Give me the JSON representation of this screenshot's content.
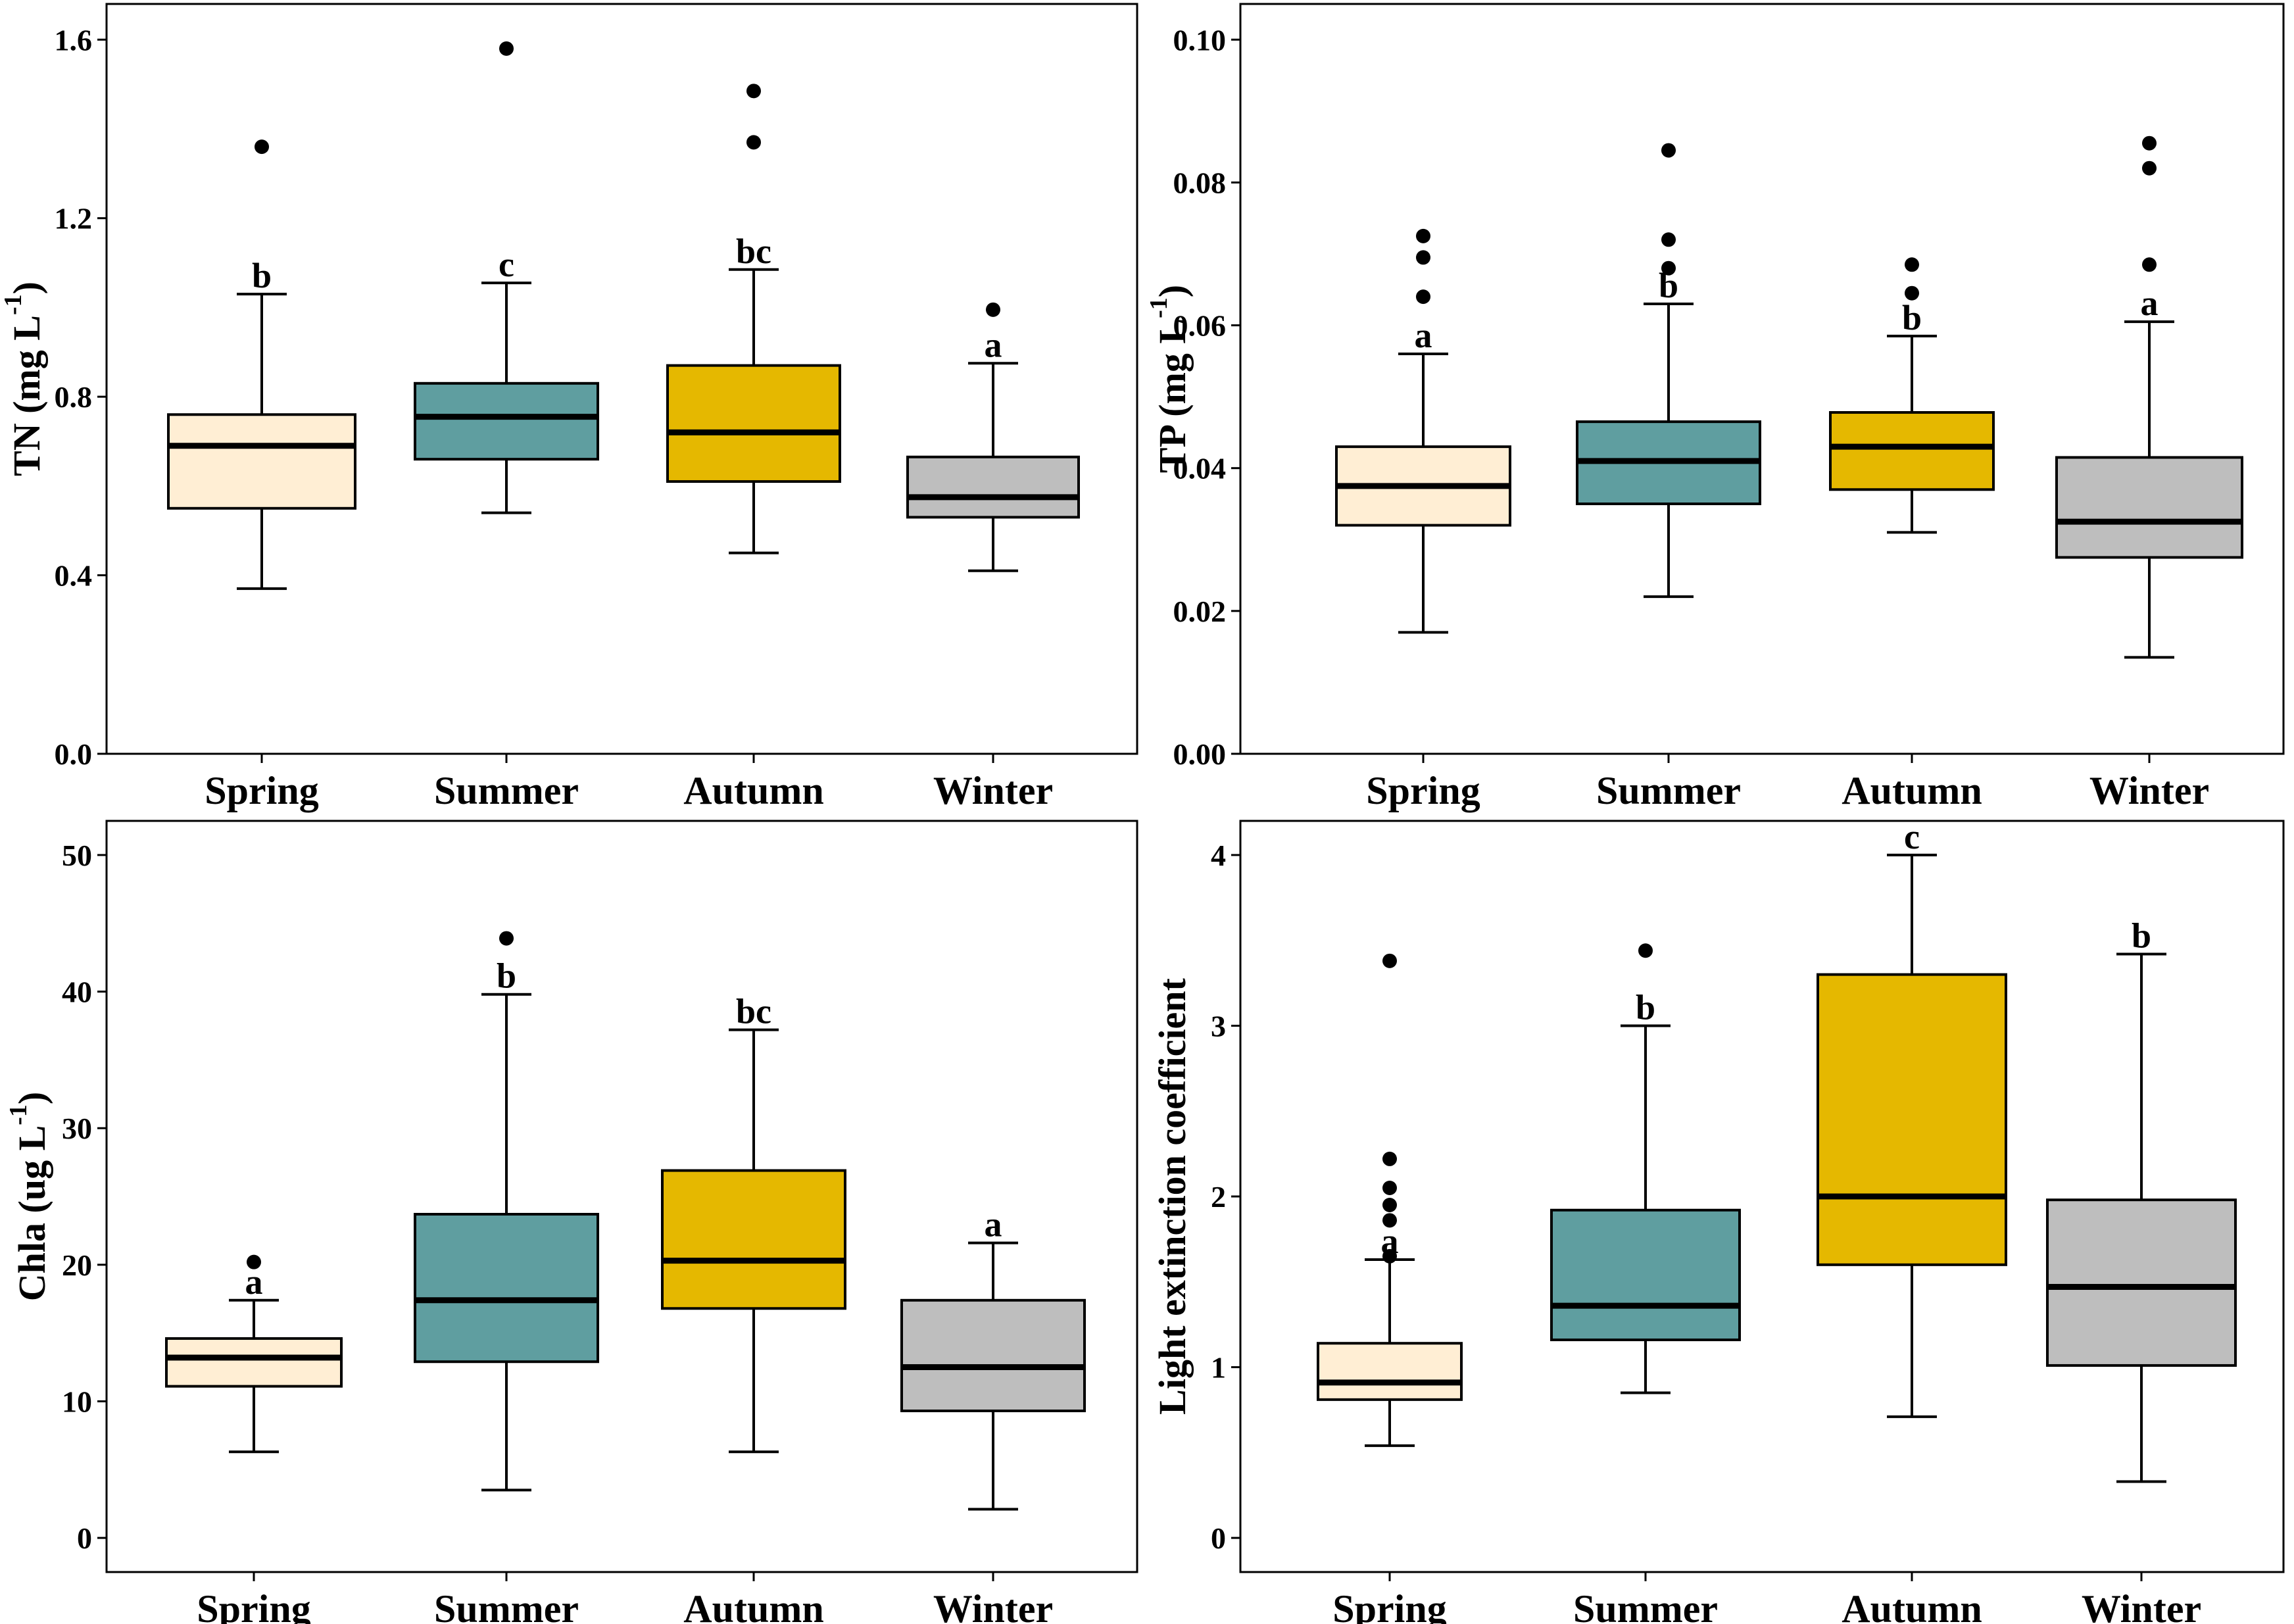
{
  "colors": {
    "Spring": "#FFEED4",
    "Summer": "#5F9EA0",
    "Autumn": "#E5B800",
    "Winter": "#BEBEBE"
  },
  "chart_data": [
    {
      "type": "box",
      "ylabel": "TN (mg L",
      "ylabel_sup": "-1",
      "ylabel_end": ")",
      "ylim": [
        0,
        1.68
      ],
      "yticks": [
        0.0,
        0.4,
        0.8,
        1.2,
        1.6
      ],
      "ytick_labels": [
        "0.0",
        "0.4",
        "0.8",
        "1.2",
        "1.6"
      ],
      "categories": [
        "Spring",
        "Summer",
        "Autumn",
        "Winter"
      ],
      "boxes": [
        {
          "min": 0.37,
          "q1": 0.55,
          "median": 0.69,
          "q3": 0.76,
          "max": 1.03,
          "outliers": [
            1.36
          ],
          "letter": "b"
        },
        {
          "min": 0.54,
          "q1": 0.66,
          "median": 0.755,
          "q3": 0.83,
          "max": 1.055,
          "outliers": [
            1.58
          ],
          "letter": "c"
        },
        {
          "min": 0.45,
          "q1": 0.61,
          "median": 0.72,
          "q3": 0.87,
          "max": 1.085,
          "outliers": [
            1.37,
            1.485
          ],
          "letter": "bc"
        },
        {
          "min": 0.41,
          "q1": 0.53,
          "median": 0.575,
          "q3": 0.665,
          "max": 0.875,
          "outliers": [
            0.995
          ],
          "letter": "a"
        }
      ]
    },
    {
      "type": "box",
      "ylabel": "TP (mg L",
      "ylabel_sup": "-1",
      "ylabel_end": ")",
      "ylim": [
        0,
        0.105
      ],
      "yticks": [
        0.0,
        0.02,
        0.04,
        0.06,
        0.08,
        0.1
      ],
      "ytick_labels": [
        "0.00",
        "0.02",
        "0.04",
        "0.06",
        "0.08",
        "0.10"
      ],
      "categories": [
        "Spring",
        "Summer",
        "Autumn",
        "Winter"
      ],
      "boxes": [
        {
          "min": 0.017,
          "q1": 0.032,
          "median": 0.0375,
          "q3": 0.043,
          "max": 0.056,
          "outliers": [
            0.064,
            0.0695,
            0.0725
          ],
          "letter": "a"
        },
        {
          "min": 0.022,
          "q1": 0.035,
          "median": 0.041,
          "q3": 0.0465,
          "max": 0.063,
          "outliers": [
            0.068,
            0.072,
            0.0845
          ],
          "letter": "b"
        },
        {
          "min": 0.031,
          "q1": 0.037,
          "median": 0.043,
          "q3": 0.0478,
          "max": 0.0585,
          "outliers": [
            0.0645,
            0.0685
          ],
          "letter": "b"
        },
        {
          "min": 0.0135,
          "q1": 0.0275,
          "median": 0.0325,
          "q3": 0.0415,
          "max": 0.0605,
          "outliers": [
            0.0685,
            0.082,
            0.0855
          ],
          "letter": "a"
        }
      ]
    },
    {
      "type": "box",
      "ylabel": "Chla (ug L",
      "ylabel_sup": "-1",
      "ylabel_end": ")",
      "ylim": [
        -2.5,
        52.5
      ],
      "yticks": [
        0,
        10,
        20,
        30,
        40,
        50
      ],
      "ytick_labels": [
        "0",
        "10",
        "20",
        "30",
        "40",
        "50"
      ],
      "categories": [
        "Spring",
        "Summer",
        "Autumn",
        "Winter"
      ],
      "boxes": [
        {
          "min": 6.3,
          "q1": 11.1,
          "median": 13.2,
          "q3": 14.6,
          "max": 17.4,
          "outliers": [
            20.2
          ],
          "letter": "a"
        },
        {
          "min": 3.5,
          "q1": 12.9,
          "median": 17.4,
          "q3": 23.7,
          "max": 39.8,
          "outliers": [
            43.9
          ],
          "letter": "b"
        },
        {
          "min": 6.3,
          "q1": 16.8,
          "median": 20.3,
          "q3": 26.9,
          "max": 37.2,
          "outliers": [],
          "letter": "bc"
        },
        {
          "min": 2.1,
          "q1": 9.3,
          "median": 12.5,
          "q3": 17.4,
          "max": 21.6,
          "outliers": [],
          "letter": "a"
        }
      ]
    },
    {
      "type": "box",
      "ylabel": "Light extinction coefficient",
      "ylabel_sup": "",
      "ylabel_end": "",
      "ylim": [
        -0.2,
        4.2
      ],
      "yticks": [
        0,
        1,
        2,
        3,
        4
      ],
      "ytick_labels": [
        "0",
        "1",
        "2",
        "3",
        "4"
      ],
      "categories": [
        "Spring",
        "Summer",
        "Autumn",
        "Winter"
      ],
      "boxes": [
        {
          "min": 0.54,
          "q1": 0.81,
          "median": 0.91,
          "q3": 1.14,
          "max": 1.63,
          "outliers": [
            1.65,
            1.86,
            1.95,
            2.05,
            2.22,
            3.38
          ],
          "letter": "a"
        },
        {
          "min": 0.85,
          "q1": 1.16,
          "median": 1.36,
          "q3": 1.92,
          "max": 3.0,
          "outliers": [
            3.44
          ],
          "letter": "b"
        },
        {
          "min": 0.71,
          "q1": 1.6,
          "median": 2.0,
          "q3": 3.3,
          "max": 4.0,
          "outliers": [],
          "letter": "c"
        },
        {
          "min": 0.33,
          "q1": 1.01,
          "median": 1.47,
          "q3": 1.98,
          "max": 3.42,
          "outliers": [],
          "letter": "b"
        }
      ]
    }
  ]
}
